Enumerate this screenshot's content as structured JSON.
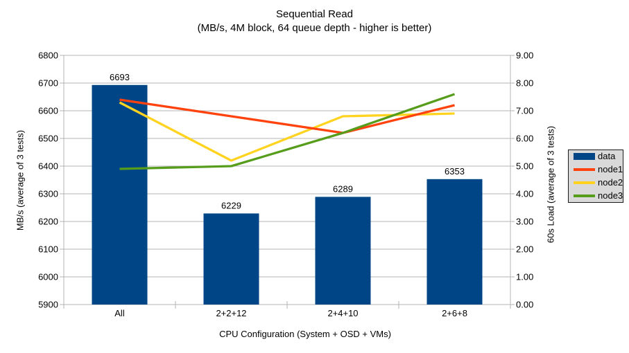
{
  "chart_data": {
    "type": "bar",
    "subtype": "combo-bar-line-dual-axis",
    "title": "Sequential Read",
    "subtitle": "(MB/s, 4M block, 64 queue depth - higher is better)",
    "categories": [
      "All",
      "2+2+12",
      "2+4+10",
      "2+6+8"
    ],
    "bar_series": {
      "name": "data",
      "axis": "left",
      "color": "#004586",
      "values": [
        6693,
        6229,
        6289,
        6353
      ],
      "value_labels_shown": true
    },
    "line_series": [
      {
        "name": "node1",
        "axis": "right",
        "color": "#ff420e",
        "values": [
          7.4,
          6.8,
          6.2,
          7.2
        ]
      },
      {
        "name": "node2",
        "axis": "right",
        "color": "#ffd320",
        "values": [
          7.3,
          5.2,
          6.8,
          6.9
        ]
      },
      {
        "name": "node3",
        "axis": "right",
        "color": "#579d1c",
        "values": [
          4.9,
          5.0,
          6.2,
          7.6
        ]
      }
    ],
    "left_axis": {
      "label": "MB/s (average of 3 tests)",
      "min": 5900,
      "max": 6800,
      "step": 100,
      "tick_decimals": 0
    },
    "right_axis": {
      "label": "60s Load (average of 3 tests)",
      "min": 0,
      "max": 9,
      "step": 1,
      "tick_decimals": 2
    },
    "x_axis": {
      "label": "CPU Configuration (System + OSD + VMs)"
    },
    "legend": {
      "position": "right",
      "entries": [
        "data",
        "node1",
        "node2",
        "node3"
      ]
    },
    "grid": "horizontal",
    "colors": {
      "background": "#ffffff",
      "grid": "#b3b3b3",
      "axis": "#b3b3b3",
      "text": "#000000",
      "legend_bg": "#d9d9d9",
      "legend_border": "#1a1a1a"
    }
  }
}
